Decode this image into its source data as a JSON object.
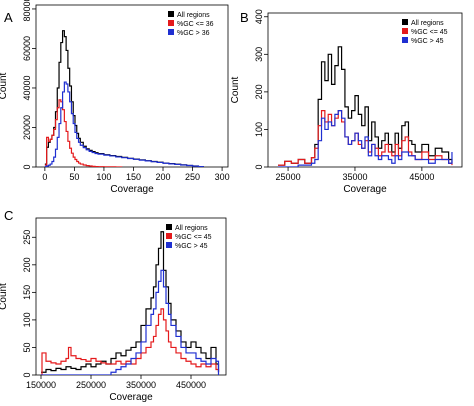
{
  "chart_data": [
    {
      "panel": "A",
      "type": "line",
      "xlabel": "Coverage",
      "ylabel": "Count",
      "xlim": [
        -15,
        310
      ],
      "ylim": [
        0,
        82000
      ],
      "xticks": [
        0,
        50,
        100,
        150,
        200,
        250,
        300
      ],
      "xtick_labels": [
        "0",
        "50",
        "100",
        "150",
        "200",
        "250",
        "300"
      ],
      "yticks": [
        0,
        20000,
        40000,
        60000,
        80000
      ],
      "ytick_labels": [
        "0",
        "20000",
        "40000",
        "60000",
        "80000"
      ],
      "grid": false,
      "legend_position": "top-right",
      "series": [
        {
          "name": "All regions",
          "color": "#000000",
          "x": [
            0,
            3,
            6,
            9,
            12,
            15,
            18,
            21,
            24,
            27,
            30,
            33,
            36,
            39,
            42,
            45,
            48,
            51,
            54,
            57,
            60,
            65,
            70,
            75,
            80,
            85,
            90,
            100,
            110,
            120,
            130,
            140,
            150,
            160,
            170,
            180,
            190,
            200,
            210,
            220,
            230,
            240,
            250,
            260,
            268
          ],
          "y": [
            1500,
            10000,
            12500,
            14000,
            16000,
            20000,
            28000,
            40000,
            53000,
            63000,
            69000,
            66000,
            59000,
            50000,
            41000,
            33000,
            26000,
            21000,
            17000,
            14500,
            12500,
            10500,
            9200,
            8400,
            7800,
            7200,
            6800,
            6200,
            5800,
            5300,
            4900,
            4400,
            4000,
            3600,
            3200,
            2800,
            2400,
            2000,
            1700,
            1400,
            1100,
            800,
            500,
            200,
            0
          ]
        },
        {
          "name": "%GC <= 36",
          "color": "#e41a1c",
          "x": [
            0,
            3,
            6,
            9,
            12,
            15,
            18,
            21,
            24,
            27,
            30,
            33,
            36,
            39,
            42,
            45,
            48,
            51,
            54,
            57,
            60,
            65,
            70,
            75,
            80,
            85,
            90,
            100,
            110,
            120,
            130
          ],
          "y": [
            1000,
            15000,
            13000,
            14000,
            16000,
            19000,
            24000,
            30000,
            34000,
            33000,
            29000,
            23000,
            18000,
            13000,
            9500,
            7000,
            5000,
            3800,
            2800,
            2000,
            1500,
            1000,
            700,
            500,
            300,
            200,
            150,
            100,
            50,
            20,
            0
          ]
        },
        {
          "name": "%GC > 36",
          "color": "#1f2fd1",
          "x": [
            0,
            3,
            6,
            9,
            12,
            15,
            18,
            21,
            24,
            27,
            30,
            33,
            36,
            39,
            42,
            45,
            48,
            51,
            54,
            57,
            60,
            65,
            70,
            75,
            80,
            85,
            90,
            100,
            110,
            120,
            130,
            140,
            150,
            160,
            170,
            180,
            190,
            200,
            210,
            220,
            230,
            240,
            250,
            260,
            268
          ],
          "y": [
            300,
            500,
            900,
            1500,
            2800,
            5000,
            9000,
            15000,
            22000,
            30000,
            38000,
            43000,
            42000,
            38000,
            33000,
            27000,
            22000,
            17500,
            14500,
            12500,
            11000,
            9800,
            8700,
            7900,
            7300,
            6800,
            6500,
            6000,
            5600,
            5100,
            4700,
            4300,
            3900,
            3500,
            3100,
            2700,
            2300,
            1900,
            1600,
            1300,
            1000,
            750,
            450,
            180,
            0
          ]
        }
      ]
    },
    {
      "panel": "B",
      "type": "line",
      "xlabel": "Coverage",
      "ylabel": "Count",
      "xlim": [
        22000,
        51000
      ],
      "ylim": [
        0,
        410
      ],
      "xticks": [
        25000,
        35000,
        45000
      ],
      "xtick_labels": [
        "25000",
        "35000",
        "45000"
      ],
      "yticks": [
        0,
        100,
        200,
        300,
        400
      ],
      "ytick_labels": [
        "0",
        "100",
        "200",
        "300",
        "400"
      ],
      "grid": false,
      "legend_position": "top-right",
      "series": [
        {
          "name": "All regions",
          "color": "#000000",
          "x": [
            23500,
            24500,
            25500,
            26500,
            27500,
            28500,
            29000,
            29500,
            30000,
            30500,
            31000,
            31500,
            32000,
            32500,
            33000,
            33500,
            34000,
            34500,
            35000,
            35500,
            36000,
            36500,
            37000,
            37500,
            38000,
            38500,
            39000,
            39500,
            40000,
            40500,
            41000,
            41500,
            42000,
            42500,
            43000,
            43500,
            44000,
            45000,
            46000,
            47000,
            48000,
            49000,
            49500
          ],
          "y": [
            5,
            15,
            10,
            20,
            10,
            25,
            60,
            180,
            280,
            230,
            300,
            220,
            270,
            320,
            260,
            160,
            130,
            150,
            190,
            140,
            110,
            160,
            70,
            120,
            80,
            50,
            70,
            90,
            60,
            40,
            90,
            50,
            110,
            120,
            70,
            60,
            40,
            60,
            30,
            50,
            40,
            20,
            10
          ]
        },
        {
          "name": "%GC <= 45",
          "color": "#e41a1c",
          "x": [
            23500,
            24500,
            25500,
            26500,
            27500,
            28500,
            29000,
            29500,
            30000,
            30500,
            31000,
            31500,
            32000,
            32500,
            33000,
            33500,
            34000,
            34500,
            35000,
            35500,
            36000,
            36500,
            37000,
            37500,
            38000,
            38500,
            39000,
            39500,
            40000,
            40500,
            41000,
            41500,
            42000,
            42500,
            43000,
            43500,
            44000,
            45000,
            46000,
            47000,
            48000,
            49000,
            49500
          ],
          "y": [
            5,
            15,
            10,
            20,
            10,
            25,
            50,
            110,
            150,
            120,
            140,
            110,
            130,
            150,
            120,
            80,
            60,
            70,
            90,
            60,
            50,
            70,
            40,
            60,
            50,
            30,
            40,
            60,
            40,
            30,
            60,
            30,
            70,
            80,
            40,
            30,
            20,
            40,
            20,
            30,
            20,
            10,
            5
          ]
        },
        {
          "name": "%GC > 45",
          "color": "#1f2fd1",
          "x": [
            23500,
            24500,
            25500,
            26500,
            27500,
            28500,
            29000,
            29500,
            30000,
            30500,
            31000,
            31500,
            32000,
            32500,
            33000,
            33500,
            34000,
            34500,
            35000,
            35500,
            36000,
            36500,
            37000,
            37500,
            38000,
            38500,
            39000,
            39500,
            40000,
            40500,
            41000,
            41500,
            42000,
            42500,
            43000,
            43500,
            44000,
            45000,
            46000,
            47000,
            48000,
            49000,
            49500
          ],
          "y": [
            0,
            0,
            0,
            5,
            5,
            10,
            20,
            70,
            130,
            100,
            120,
            110,
            140,
            150,
            130,
            80,
            60,
            70,
            90,
            70,
            50,
            80,
            30,
            60,
            30,
            20,
            30,
            30,
            20,
            10,
            30,
            20,
            40,
            40,
            30,
            30,
            20,
            20,
            10,
            20,
            20,
            10,
            40
          ]
        }
      ]
    },
    {
      "panel": "C",
      "type": "line",
      "xlabel": "Coverage",
      "ylabel": "Count",
      "xlim": [
        140000,
        520000
      ],
      "ylim": [
        0,
        285
      ],
      "xticks": [
        150000,
        250000,
        350000,
        450000
      ],
      "xtick_labels": [
        "150000",
        "250000",
        "350000",
        "450000"
      ],
      "yticks": [
        0,
        50,
        100,
        150,
        200,
        250
      ],
      "ytick_labels": [
        "0",
        "50",
        "100",
        "150",
        "200",
        "250"
      ],
      "grid": false,
      "legend_position": "top-right",
      "series": [
        {
          "name": "All regions",
          "color": "#000000",
          "x": [
            150000,
            160000,
            170000,
            180000,
            190000,
            200000,
            210000,
            220000,
            230000,
            240000,
            250000,
            260000,
            270000,
            280000,
            290000,
            300000,
            310000,
            320000,
            330000,
            340000,
            350000,
            360000,
            370000,
            375000,
            380000,
            385000,
            390000,
            395000,
            400000,
            405000,
            410000,
            420000,
            430000,
            440000,
            450000,
            460000,
            470000,
            480000,
            490000,
            500000,
            505000
          ],
          "y": [
            5,
            10,
            8,
            12,
            10,
            15,
            12,
            10,
            15,
            20,
            15,
            20,
            25,
            20,
            30,
            40,
            35,
            45,
            50,
            60,
            90,
            120,
            140,
            160,
            200,
            230,
            260,
            190,
            160,
            130,
            100,
            80,
            60,
            50,
            60,
            50,
            40,
            30,
            50,
            20,
            5
          ]
        },
        {
          "name": "%GC <= 45",
          "color": "#e41a1c",
          "x": [
            150000,
            152000,
            160000,
            170000,
            180000,
            190000,
            200000,
            205000,
            210000,
            220000,
            230000,
            240000,
            250000,
            260000,
            270000,
            280000,
            290000,
            300000,
            310000,
            320000,
            330000,
            340000,
            350000,
            360000,
            370000,
            375000,
            380000,
            385000,
            390000,
            395000,
            400000,
            405000,
            410000,
            420000,
            430000,
            440000,
            450000,
            460000,
            470000,
            480000,
            490000,
            500000,
            505000
          ],
          "y": [
            0,
            40,
            25,
            22,
            20,
            25,
            30,
            50,
            35,
            30,
            28,
            25,
            30,
            25,
            22,
            20,
            20,
            25,
            20,
            25,
            20,
            30,
            40,
            50,
            60,
            70,
            90,
            110,
            120,
            100,
            80,
            60,
            50,
            40,
            30,
            25,
            20,
            15,
            20,
            15,
            20,
            10,
            5
          ]
        },
        {
          "name": "%GC > 45",
          "color": "#1f2fd1",
          "x": [
            150000,
            200000,
            250000,
            290000,
            300000,
            310000,
            320000,
            330000,
            340000,
            350000,
            360000,
            370000,
            375000,
            380000,
            385000,
            390000,
            395000,
            400000,
            405000,
            410000,
            420000,
            430000,
            440000,
            450000,
            460000,
            470000,
            480000,
            490000,
            500000,
            505000
          ],
          "y": [
            0,
            0,
            0,
            5,
            10,
            15,
            20,
            30,
            40,
            60,
            90,
            110,
            120,
            150,
            170,
            190,
            160,
            130,
            110,
            90,
            70,
            50,
            40,
            40,
            30,
            25,
            20,
            30,
            25,
            0
          ]
        }
      ]
    }
  ]
}
